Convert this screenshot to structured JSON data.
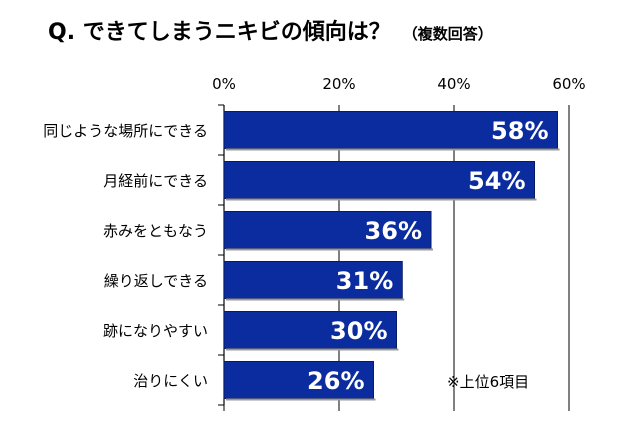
{
  "title": "Q. できてしまうニキビの傾向は？",
  "subtitle": "（複数回答）",
  "note": "※上位6項目",
  "colors": {
    "bar": "#0a2c9e",
    "bar_stroke": "#061a66",
    "label_on_bar": "#ffffff",
    "grid": "#000000"
  },
  "chart_data": {
    "type": "bar",
    "orientation": "horizontal",
    "title": "Q. できてしまうニキビの傾向は？",
    "subtitle": "（複数回答）",
    "categories": [
      "同じような場所にできる",
      "月経前にできる",
      "赤みをともなう",
      "繰り返しできる",
      "跡になりやすい",
      "治りにくい"
    ],
    "values": [
      58,
      54,
      36,
      31,
      30,
      26
    ],
    "data_labels": [
      "58%",
      "54%",
      "36%",
      "31%",
      "30%",
      "26%"
    ],
    "xlim": [
      0,
      60
    ],
    "xticks": [
      0,
      20,
      40,
      60
    ],
    "xtick_labels": [
      "0%",
      "20%",
      "40%",
      "60%"
    ],
    "xaxis_position": "top",
    "grid": true,
    "xlabel": "",
    "ylabel": "",
    "legend": null
  }
}
